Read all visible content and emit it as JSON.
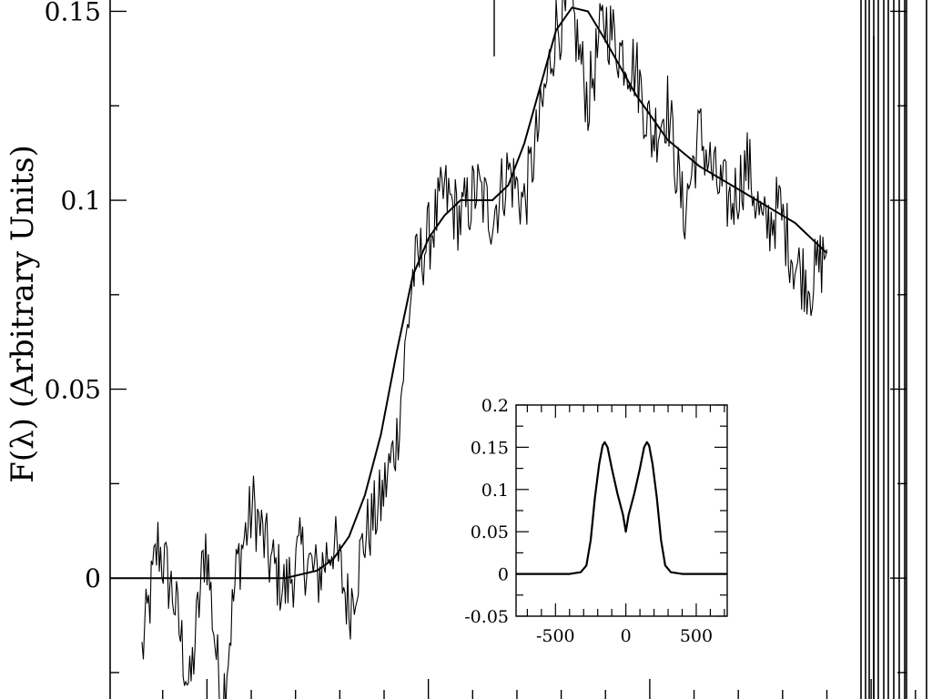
{
  "chart_data": [
    {
      "type": "line",
      "ylabel": "F(λ) (Arbitrary Units)",
      "ylim": [
        -0.032,
        0.153
      ],
      "yticks": [
        0,
        0.05,
        0.1,
        0.15
      ],
      "ytick_labels": [
        "0",
        "0.05",
        "0.1",
        "0.15"
      ],
      "series": [
        {
          "style": "noisy observed spectrum",
          "x": [
            0.04,
            0.06,
            0.08,
            0.1,
            0.12,
            0.14,
            0.16,
            0.18,
            0.2,
            0.22,
            0.24,
            0.26,
            0.28,
            0.3,
            0.32,
            0.34,
            0.36,
            0.38,
            0.4,
            0.42,
            0.44,
            0.46,
            0.48,
            0.5,
            0.52,
            0.54,
            0.56,
            0.58,
            0.6,
            0.62,
            0.64,
            0.66,
            0.68,
            0.7,
            0.72,
            0.74,
            0.76,
            0.78,
            0.8,
            0.82,
            0.84,
            0.86,
            0.88,
            0.9
          ],
          "y": [
            -0.02,
            0.009,
            -0.005,
            -0.03,
            0.01,
            -0.035,
            0.004,
            0.019,
            0.005,
            -0.003,
            0.007,
            0.0,
            0.01,
            -0.008,
            0.011,
            0.02,
            0.037,
            0.08,
            0.09,
            0.102,
            0.095,
            0.103,
            0.096,
            0.108,
            0.099,
            0.121,
            0.146,
            0.15,
            0.126,
            0.148,
            0.14,
            0.135,
            0.117,
            0.125,
            0.096,
            0.118,
            0.105,
            0.099,
            0.11,
            0.092,
            0.098,
            0.083,
            0.078,
            0.087
          ]
        },
        {
          "style": "smooth model fit",
          "x": [
            0.0,
            0.06,
            0.12,
            0.18,
            0.22,
            0.26,
            0.28,
            0.3,
            0.32,
            0.34,
            0.36,
            0.38,
            0.4,
            0.42,
            0.44,
            0.46,
            0.48,
            0.5,
            0.52,
            0.54,
            0.56,
            0.58,
            0.6,
            0.62,
            0.66,
            0.7,
            0.74,
            0.78,
            0.82,
            0.86,
            0.9
          ],
          "y": [
            0.0,
            0.0,
            0.0,
            0.0,
            0.0,
            0.002,
            0.005,
            0.011,
            0.022,
            0.038,
            0.06,
            0.08,
            0.09,
            0.096,
            0.1,
            0.1,
            0.1,
            0.104,
            0.115,
            0.13,
            0.145,
            0.151,
            0.15,
            0.143,
            0.128,
            0.116,
            0.109,
            0.104,
            0.099,
            0.094,
            0.086
          ]
        }
      ]
    },
    {
      "type": "line",
      "xlim": [
        -780,
        720
      ],
      "ylim": [
        -0.05,
        0.2
      ],
      "xticks": [
        -500,
        0,
        500
      ],
      "xtick_labels": [
        "-500",
        "0",
        "500"
      ],
      "yticks": [
        -0.05,
        0,
        0.05,
        0.1,
        0.15,
        0.2
      ],
      "ytick_labels": [
        "-0.05",
        "0",
        "0.05",
        "0.1",
        "0.15",
        "0.2"
      ],
      "series": [
        {
          "style": "double-peaked line profile",
          "x": [
            -780,
            -400,
            -320,
            -280,
            -250,
            -220,
            -190,
            -165,
            -150,
            -130,
            -100,
            -60,
            -20,
            0,
            20,
            60,
            100,
            130,
            150,
            165,
            190,
            220,
            250,
            280,
            320,
            400,
            720
          ],
          "y": [
            0,
            0,
            0.002,
            0.01,
            0.04,
            0.09,
            0.13,
            0.152,
            0.156,
            0.15,
            0.125,
            0.095,
            0.07,
            0.05,
            0.07,
            0.095,
            0.125,
            0.15,
            0.156,
            0.152,
            0.13,
            0.09,
            0.04,
            0.01,
            0.002,
            0,
            0
          ]
        }
      ]
    }
  ]
}
